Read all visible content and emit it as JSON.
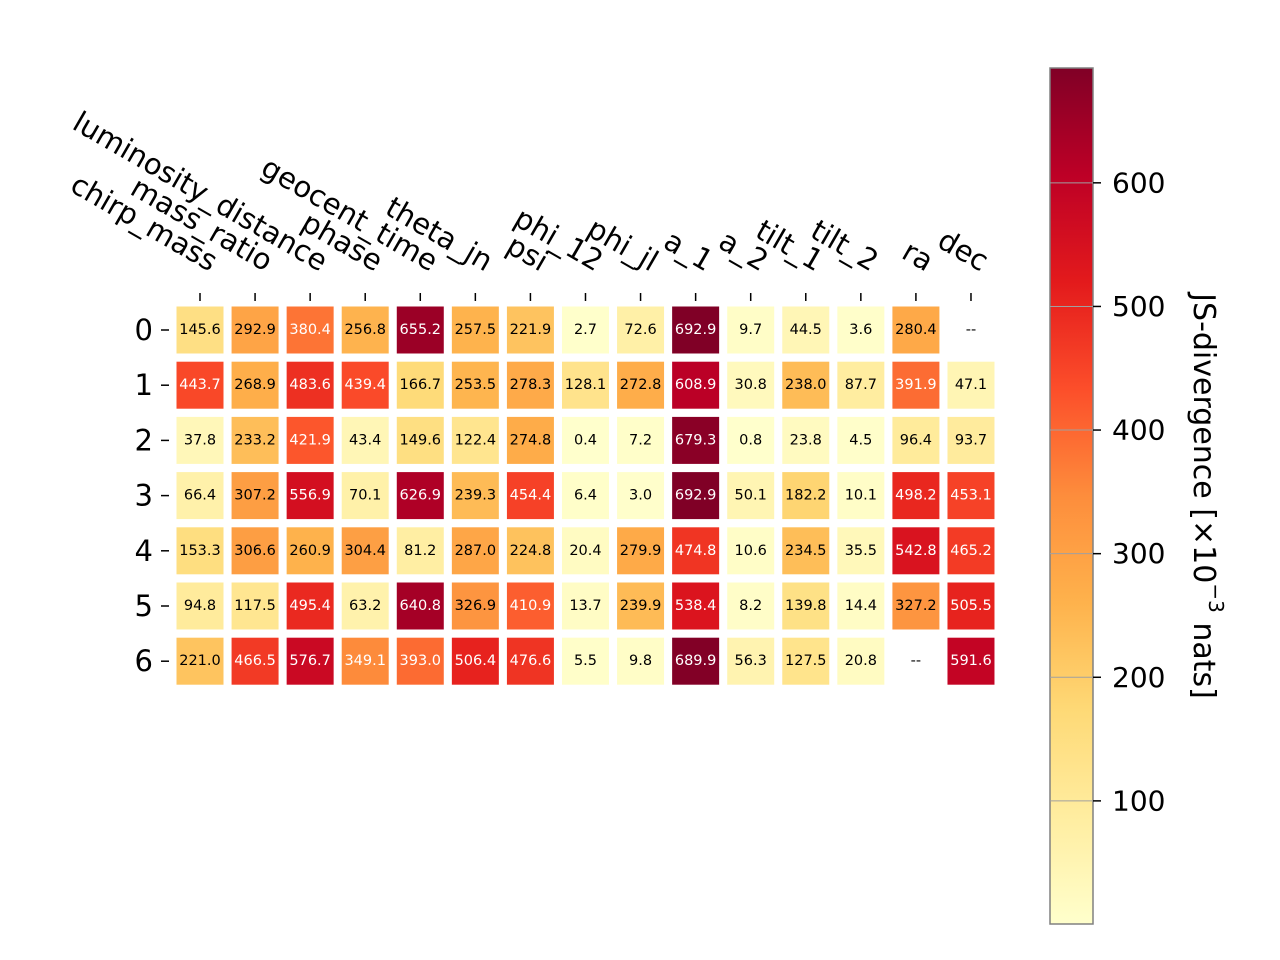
{
  "chart_data": {
    "type": "heatmap",
    "columns": [
      "chirp_mass",
      "mass_ratio",
      "luminosity_distance",
      "phase",
      "geocent_time",
      "theta_jn",
      "psi",
      "phi_12",
      "phi_jl",
      "a_1",
      "a_2",
      "tilt_1",
      "tilt_2",
      "ra",
      "dec"
    ],
    "rows": [
      "0",
      "1",
      "2",
      "3",
      "4",
      "5",
      "6"
    ],
    "values": [
      [
        145.6,
        292.9,
        380.4,
        256.8,
        655.2,
        257.5,
        221.9,
        2.7,
        72.6,
        692.9,
        9.7,
        44.5,
        3.6,
        280.4,
        null
      ],
      [
        443.7,
        268.9,
        483.6,
        439.4,
        166.7,
        253.5,
        278.3,
        128.1,
        272.8,
        608.9,
        30.8,
        238.0,
        87.7,
        391.9,
        47.1
      ],
      [
        37.8,
        233.2,
        421.9,
        43.4,
        149.6,
        122.4,
        274.8,
        0.4,
        7.2,
        679.3,
        0.8,
        23.8,
        4.5,
        96.4,
        93.7
      ],
      [
        66.4,
        307.2,
        556.9,
        70.1,
        626.9,
        239.3,
        454.4,
        6.4,
        3.0,
        692.9,
        50.1,
        182.2,
        10.1,
        498.2,
        453.1
      ],
      [
        153.3,
        306.6,
        260.9,
        304.4,
        81.2,
        287.0,
        224.8,
        20.4,
        279.9,
        474.8,
        10.6,
        234.5,
        35.5,
        542.8,
        465.2
      ],
      [
        94.8,
        117.5,
        495.4,
        63.2,
        640.8,
        326.9,
        410.9,
        13.7,
        239.9,
        538.4,
        8.2,
        139.8,
        14.4,
        327.2,
        505.5
      ],
      [
        221.0,
        466.5,
        576.7,
        349.1,
        393.0,
        506.4,
        476.6,
        5.5,
        9.8,
        689.9,
        56.3,
        127.5,
        20.8,
        null,
        591.6
      ]
    ],
    "labels": [
      [
        "145.6",
        "292.9",
        "380.4",
        "256.8",
        "655.2",
        "257.5",
        "221.9",
        "2.7",
        "72.6",
        "692.9",
        "9.7",
        "44.5",
        "3.6",
        "280.4",
        "--"
      ],
      [
        "443.7",
        "268.9",
        "483.6",
        "439.4",
        "166.7",
        "253.5",
        "278.3",
        "128.1",
        "272.8",
        "608.9",
        "30.8",
        "238.0",
        "87.7",
        "391.9",
        "47.1"
      ],
      [
        "37.8",
        "233.2",
        "421.9",
        "43.4",
        "149.6",
        "122.4",
        "274.8",
        "0.4",
        "7.2",
        "679.3",
        "0.8",
        "23.8",
        "4.5",
        "96.4",
        "93.7"
      ],
      [
        "66.4",
        "307.2",
        "556.9",
        "70.1",
        "626.9",
        "239.3",
        "454.4",
        "6.4",
        "3.0",
        "692.9",
        "50.1",
        "182.2",
        "10.1",
        "498.2",
        "453.1"
      ],
      [
        "153.3",
        "306.6",
        "260.9",
        "304.4",
        "81.2",
        "287.0",
        "224.8",
        "20.4",
        "279.9",
        "474.8",
        "10.6",
        "234.5",
        "35.5",
        "542.8",
        "465.2"
      ],
      [
        "94.8",
        "117.5",
        "495.4",
        "63.2",
        "640.8",
        "326.9",
        "410.9",
        "13.7",
        "239.9",
        "538.4",
        "8.2",
        "139.8",
        "14.4",
        "327.2",
        "505.5"
      ],
      [
        "221.0",
        "466.5",
        "576.7",
        "349.1",
        "393.0",
        "506.4",
        "476.6",
        "5.5",
        "9.8",
        "689.9",
        "56.3",
        "127.5",
        "20.8",
        "--",
        "591.6"
      ]
    ],
    "colormap": "YlOrRd",
    "vmin": 0.4,
    "vmax": 692.9,
    "colorbar": {
      "label": "JS-divergence [×10",
      "label_exponent": "−3",
      "label_suffix": " nats]",
      "ticks": [
        100,
        200,
        300,
        400,
        500,
        600
      ],
      "tick_labels": [
        "100",
        "200",
        "300",
        "400",
        "500",
        "600"
      ],
      "placement": "right"
    },
    "missing_label": "--",
    "grid": false
  }
}
